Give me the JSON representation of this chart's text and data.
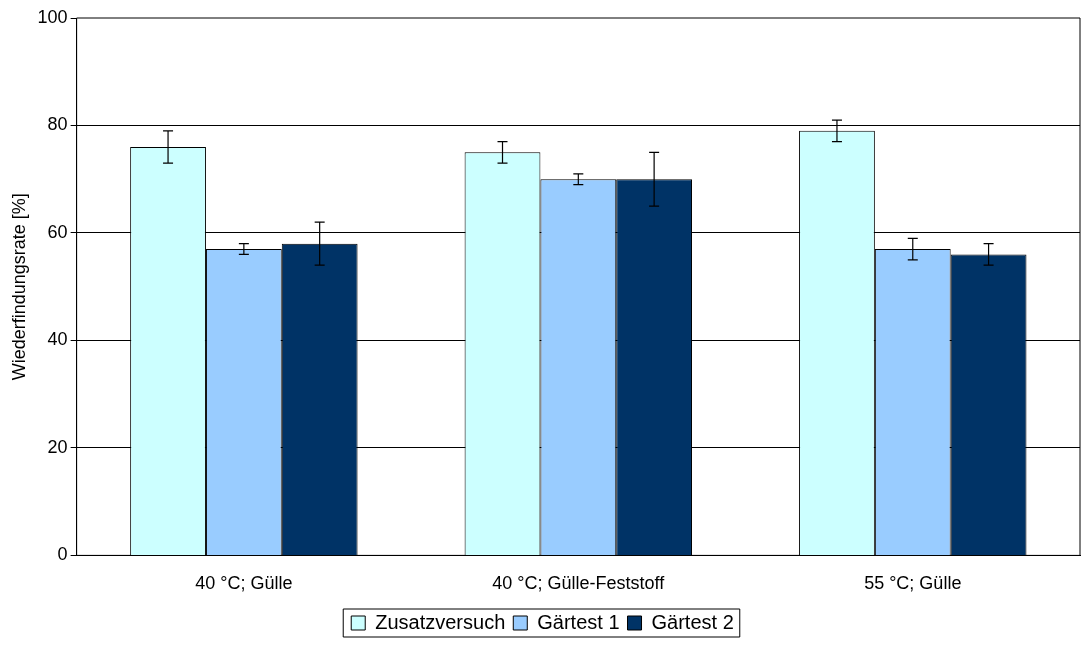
{
  "chart_data": {
    "type": "bar",
    "ylabel": "Wiederfindungsrate [%]",
    "categories": [
      "40 °C; Gülle",
      "40 °C; Gülle-Feststoff",
      "55 °C; Gülle"
    ],
    "series": [
      {
        "name": "Zusatzversuch",
        "color": "#ccffff",
        "values": [
          76,
          75,
          79
        ],
        "errors": [
          3,
          2,
          2
        ]
      },
      {
        "name": "Gärtest 1",
        "color": "#99ccff",
        "values": [
          57,
          70,
          57
        ],
        "errors": [
          1,
          1,
          2
        ]
      },
      {
        "name": "Gärtest 2",
        "color": "#003366",
        "values": [
          58,
          70,
          56
        ],
        "errors": [
          4,
          5,
          2
        ]
      }
    ],
    "ylim": [
      0,
      100
    ],
    "yticks": [
      0,
      20,
      40,
      60,
      80,
      100
    ],
    "grid": "y",
    "legend": "bottom"
  }
}
